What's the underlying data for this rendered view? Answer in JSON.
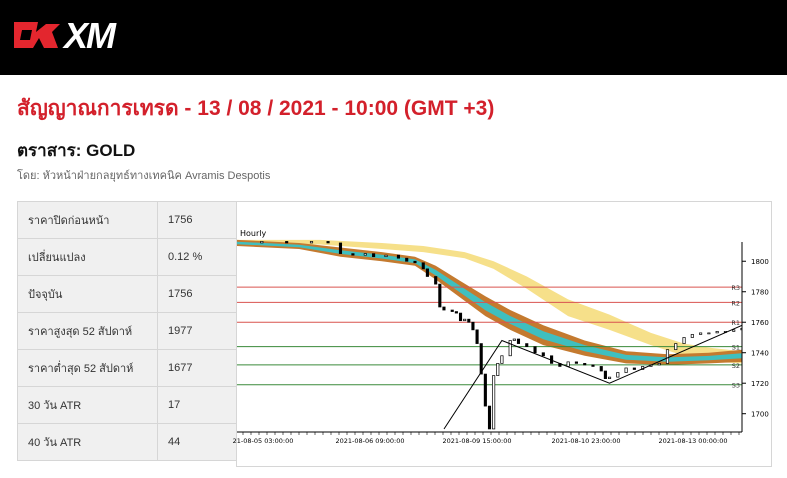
{
  "header": {
    "logo_text": "XM",
    "logo_icon": "xm-logo-mark"
  },
  "title": "สัญญาณการเทรด - 13 / 08 / 2021 - 10:00 (GMT +3)",
  "instrument": "ตราสาร: GOLD",
  "author": "โดย: หัวหน้าฝ่ายกลยุทธ์ทางเทคนิค Avramis Despotis",
  "stats": [
    {
      "label": "ราคาปิดก่อนหน้า",
      "value": "1756"
    },
    {
      "label": "เปลี่ยนแปลง",
      "value": "0.12 %"
    },
    {
      "label": "ปัจจุบัน",
      "value": "1756"
    },
    {
      "label": "ราคาสูงสุด 52 สัปดาห์",
      "value": "1977"
    },
    {
      "label": "ราคาต่ำสุด 52 สัปดาห์",
      "value": "1677"
    },
    {
      "label": "30 วัน ATR",
      "value": "17"
    },
    {
      "label": "40 วัน ATR",
      "value": "44"
    }
  ],
  "chart_data": {
    "type": "line",
    "title": "Hourly",
    "ylim": [
      1688,
      1810
    ],
    "y_ticks": [
      1700,
      1720,
      1740,
      1760,
      1780,
      1800
    ],
    "x_ticks": [
      "21-08-05 03:00:00",
      "2021-08-06 09:00:00",
      "2021-08-09 15:00:00",
      "2021-08-10 23:00:00",
      "2021-08-13 00:00:00"
    ],
    "levels": [
      {
        "name": "R3",
        "value": 1783,
        "color": "#d9534f"
      },
      {
        "name": "R2",
        "value": 1773,
        "color": "#d9534f"
      },
      {
        "name": "R1",
        "value": 1760,
        "color": "#d9534f"
      },
      {
        "name": "S1",
        "value": 1744,
        "color": "#3a8a3a"
      },
      {
        "name": "S2",
        "value": 1732,
        "color": "#3a8a3a"
      },
      {
        "name": "S3",
        "value": 1719,
        "color": "#3a8a3a"
      }
    ],
    "price": [
      [
        0,
        1812
      ],
      [
        6,
        1813
      ],
      [
        12,
        1812
      ],
      [
        18,
        1813
      ],
      [
        22,
        1812
      ],
      [
        25,
        1805
      ],
      [
        28,
        1804
      ],
      [
        31,
        1805
      ],
      [
        33,
        1803
      ],
      [
        36,
        1804
      ],
      [
        39,
        1802
      ],
      [
        41,
        1800
      ],
      [
        43,
        1799
      ],
      [
        45,
        1795
      ],
      [
        46,
        1790
      ],
      [
        48,
        1785
      ],
      [
        49,
        1770
      ],
      [
        50,
        1768
      ],
      [
        52,
        1767
      ],
      [
        53,
        1766
      ],
      [
        54,
        1761
      ],
      [
        55,
        1762
      ],
      [
        56,
        1760
      ],
      [
        57,
        1755
      ],
      [
        58,
        1746
      ],
      [
        59,
        1726
      ],
      [
        60,
        1705
      ],
      [
        61,
        1690
      ],
      [
        62,
        1725
      ],
      [
        63,
        1733
      ],
      [
        64,
        1738
      ],
      [
        66,
        1748
      ],
      [
        67,
        1749
      ],
      [
        68,
        1746
      ],
      [
        70,
        1744
      ],
      [
        72,
        1740
      ],
      [
        74,
        1738
      ],
      [
        76,
        1733
      ],
      [
        78,
        1731
      ],
      [
        80,
        1734
      ],
      [
        82,
        1733
      ],
      [
        84,
        1732
      ],
      [
        86,
        1731
      ],
      [
        88,
        1728
      ],
      [
        89,
        1723
      ],
      [
        90,
        1724
      ],
      [
        92,
        1727
      ],
      [
        94,
        1730
      ],
      [
        96,
        1729
      ],
      [
        98,
        1731
      ],
      [
        100,
        1732
      ],
      [
        102,
        1733
      ],
      [
        104,
        1742
      ],
      [
        106,
        1746
      ],
      [
        108,
        1750
      ],
      [
        110,
        1752
      ],
      [
        112,
        1753
      ],
      [
        114,
        1753
      ],
      [
        116,
        1754
      ],
      [
        118,
        1754
      ],
      [
        120,
        1755
      ],
      [
        122,
        1756
      ]
    ],
    "trend_line": [
      [
        50,
        1690
      ],
      [
        64,
        1748
      ],
      [
        90,
        1720
      ],
      [
        122,
        1758
      ]
    ],
    "ribbon_slow": {
      "color": "#f6e08a",
      "upper": [
        [
          0,
          1814
        ],
        [
          20,
          1814
        ],
        [
          35,
          1812
        ],
        [
          45,
          1810
        ],
        [
          55,
          1806
        ],
        [
          62,
          1800
        ],
        [
          70,
          1790
        ],
        [
          80,
          1775
        ],
        [
          90,
          1765
        ],
        [
          100,
          1753
        ],
        [
          108,
          1746
        ],
        [
          115,
          1743
        ],
        [
          122,
          1741
        ]
      ],
      "lower": [
        [
          0,
          1811
        ],
        [
          20,
          1811
        ],
        [
          35,
          1808
        ],
        [
          45,
          1806
        ],
        [
          55,
          1802
        ],
        [
          62,
          1795
        ],
        [
          70,
          1782
        ],
        [
          80,
          1764
        ],
        [
          90,
          1755
        ],
        [
          100,
          1745
        ],
        [
          108,
          1738
        ],
        [
          115,
          1734
        ],
        [
          122,
          1733
        ]
      ]
    },
    "ribbon_fast": {
      "color": "#c47a2f",
      "inner_color": "#3fbfbf",
      "upper": [
        [
          0,
          1814
        ],
        [
          15,
          1812
        ],
        [
          25,
          1809
        ],
        [
          35,
          1806
        ],
        [
          43,
          1803
        ],
        [
          48,
          1797
        ],
        [
          54,
          1787
        ],
        [
          60,
          1777
        ],
        [
          66,
          1768
        ],
        [
          74,
          1758
        ],
        [
          84,
          1748
        ],
        [
          94,
          1741
        ],
        [
          104,
          1739
        ],
        [
          114,
          1740
        ],
        [
          122,
          1742
        ]
      ],
      "lower": [
        [
          0,
          1810
        ],
        [
          15,
          1808
        ],
        [
          25,
          1803
        ],
        [
          35,
          1800
        ],
        [
          43,
          1797
        ],
        [
          48,
          1788
        ],
        [
          54,
          1776
        ],
        [
          60,
          1764
        ],
        [
          66,
          1755
        ],
        [
          74,
          1745
        ],
        [
          84,
          1738
        ],
        [
          94,
          1733
        ],
        [
          104,
          1732
        ],
        [
          114,
          1733
        ],
        [
          122,
          1734
        ]
      ]
    }
  }
}
